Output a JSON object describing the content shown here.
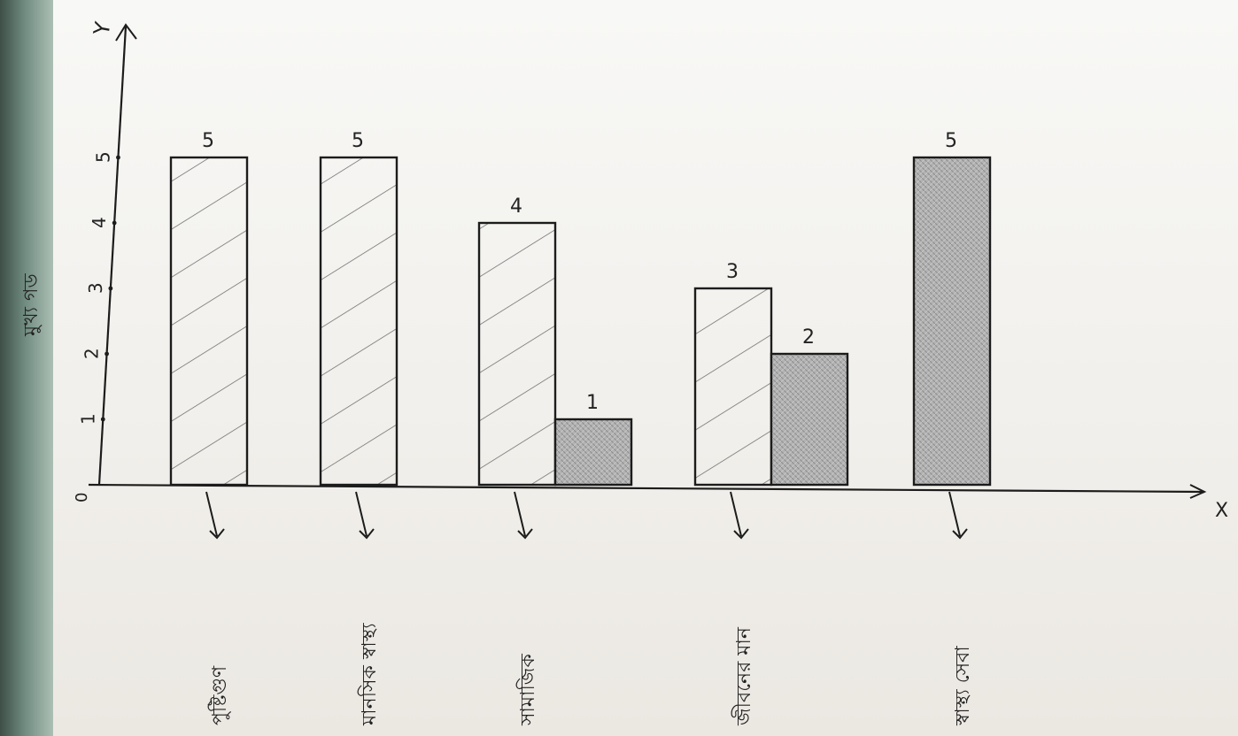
{
  "chart_data": {
    "type": "bar",
    "orientation": "rotated 90deg (image turned sideways)",
    "ylabel": "মুখ্য গড",
    "yaxis_letter": "Y",
    "xaxis_letter": "X",
    "origin_label": "0",
    "y_ticks": [
      "1",
      "2",
      "3",
      "4",
      "5"
    ],
    "ylim": [
      0,
      5
    ],
    "categories": [
      "পুষ্টিগুণ",
      "মানসিক স্বাস্থ্য",
      "সামাজিক",
      "জীবনের মান",
      "স্বাস্থ্য সেবা"
    ],
    "groups": [
      {
        "bars": [
          {
            "value": 5,
            "label": "5",
            "style": "hatched"
          }
        ]
      },
      {
        "bars": [
          {
            "value": 5,
            "label": "5",
            "style": "hatched"
          }
        ]
      },
      {
        "bars": [
          {
            "value": 4,
            "label": "4",
            "style": "hatched"
          },
          {
            "value": 1,
            "label": "1",
            "style": "shaded"
          }
        ]
      },
      {
        "bars": [
          {
            "value": 3,
            "label": "3",
            "style": "hatched"
          },
          {
            "value": 2,
            "label": "2",
            "style": "shaded"
          }
        ]
      },
      {
        "bars": [
          {
            "value": 5,
            "label": "5",
            "style": "shaded"
          }
        ]
      }
    ],
    "grid": false,
    "colors": {
      "ink": "#1c1c1c",
      "hatch": "#6b6b6b",
      "shade": "#a9a9a9"
    }
  }
}
